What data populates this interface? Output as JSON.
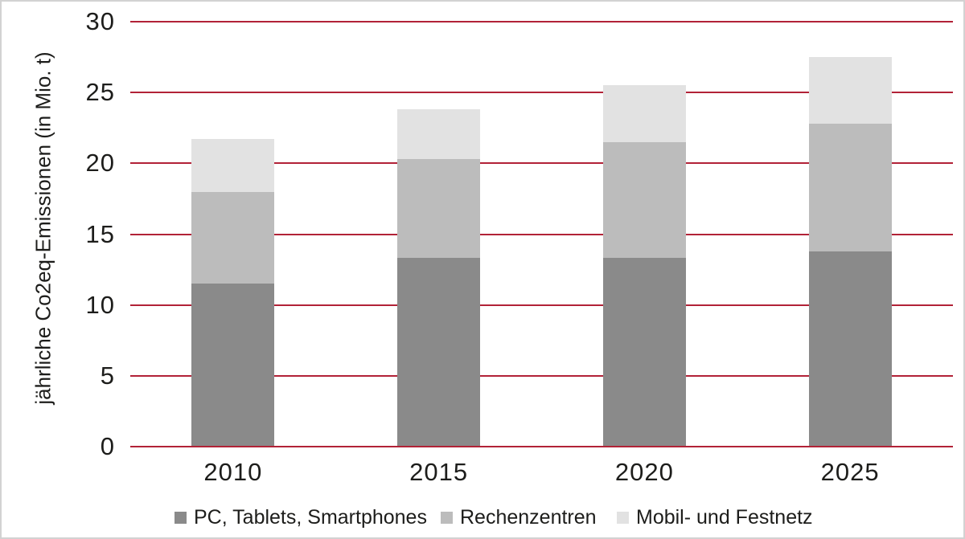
{
  "chart_data": {
    "type": "bar",
    "stacked": true,
    "categories": [
      "2010",
      "2015",
      "2020",
      "2025"
    ],
    "series": [
      {
        "name": "PC, Tablets, Smartphones",
        "color": "#8a8a8a",
        "values": [
          11.5,
          13.3,
          13.3,
          13.8
        ]
      },
      {
        "name": "Rechenzentren",
        "color": "#bcbcbc",
        "values": [
          6.5,
          7.0,
          8.2,
          9.0
        ]
      },
      {
        "name": "Mobil- und Festnetz",
        "color": "#e2e2e2",
        "values": [
          3.7,
          3.5,
          4.0,
          4.7
        ]
      }
    ],
    "stack_totals": [
      21.7,
      23.8,
      25.5,
      27.5
    ],
    "ylabel": "jährliche Co2eq-Emissionen (in Mio. t)",
    "ylim": [
      0,
      30
    ],
    "yticks": [
      0,
      5,
      10,
      15,
      20,
      25,
      30
    ],
    "grid": "horizontal",
    "gridline_color": "#b22237",
    "legend_position": "bottom",
    "text_color": "#1d1d1b"
  }
}
